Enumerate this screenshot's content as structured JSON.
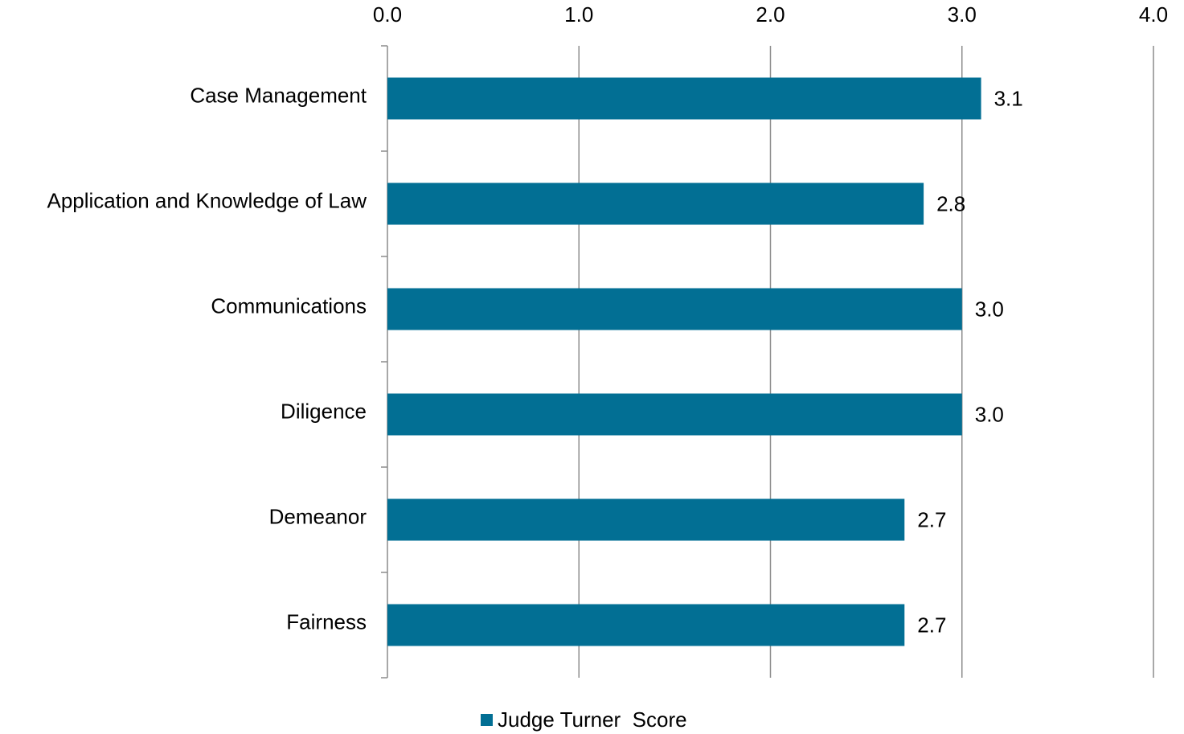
{
  "chart_data": {
    "type": "barh",
    "categories": [
      "Case Management",
      "Application and Knowledge of Law",
      "Communications",
      "Diligence",
      "Demeanor",
      "Fairness"
    ],
    "series": [
      {
        "name": "Judge Turner  Score",
        "color": "#026f94",
        "values": [
          3.1,
          2.8,
          3.0,
          3.0,
          2.7,
          2.7
        ],
        "value_labels": [
          "3.1",
          "2.8",
          "3.0",
          "3.0",
          "2.7",
          "2.7"
        ]
      }
    ],
    "xlim": [
      0,
      4
    ],
    "xticks": [
      {
        "value": 0,
        "label": "0.0"
      },
      {
        "value": 1,
        "label": "1.0"
      },
      {
        "value": 2,
        "label": "2.0"
      },
      {
        "value": 3,
        "label": "3.0"
      },
      {
        "value": 4,
        "label": "4.0"
      }
    ],
    "grid": true,
    "legend": "bottom"
  }
}
